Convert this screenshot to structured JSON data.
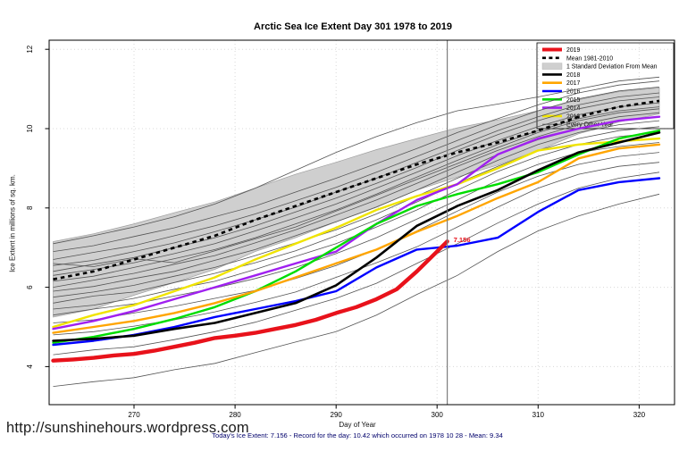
{
  "page": {
    "url_text": "http://sunshinehours.wordpress.com"
  },
  "chart_data": {
    "type": "line",
    "title": "Arctic Sea Ice Extent Day 301 1978 to 2019",
    "xlabel": "Day of Year",
    "ylabel": "Ice Extent in millions of sq. km.",
    "footnote": "Today's Ice Extent: 7.156  - Record for the day: 10.42 which occurred on 1978 10 28  - Mean: 9.34",
    "grid": true,
    "legend_position": "top-right",
    "x_ticks": [
      270,
      280,
      290,
      300,
      310,
      320
    ],
    "y_ticks": [
      4,
      6,
      8,
      10,
      12
    ],
    "xlim": [
      261.6,
      323.5
    ],
    "ylim": [
      3.04,
      12.23
    ],
    "marker_day": 301,
    "annotation": {
      "text": "7.156",
      "day": 301,
      "value": 7.156,
      "color": "#e8121b"
    },
    "days": [
      262,
      266,
      270,
      274,
      278,
      282,
      286,
      290,
      294,
      298,
      302,
      306,
      310,
      314,
      318,
      322
    ],
    "band": {
      "name": "1 Standard Deviation From Mean",
      "color": "#cfcfcf",
      "edge_color": "#9e9e9e",
      "upper": [
        7.15,
        7.35,
        7.6,
        7.88,
        8.15,
        8.5,
        8.85,
        9.15,
        9.47,
        9.75,
        10.02,
        10.22,
        10.45,
        10.73,
        10.93,
        11.03
      ],
      "lower": [
        5.25,
        5.45,
        5.8,
        6.12,
        6.45,
        6.9,
        7.25,
        7.65,
        8.03,
        8.45,
        8.78,
        9.08,
        9.45,
        9.87,
        10.17,
        10.37
      ]
    },
    "mean_series": {
      "name": "Mean 1981-2010",
      "color": "#000000",
      "dashed": true,
      "values": [
        6.2,
        6.4,
        6.7,
        7.0,
        7.3,
        7.7,
        8.05,
        8.4,
        8.75,
        9.1,
        9.4,
        9.65,
        9.95,
        10.3,
        10.55,
        10.7
      ]
    },
    "series": [
      {
        "name": "2013",
        "color": "#f0e400",
        "width": 2.4,
        "values": [
          5.0,
          5.3,
          5.55,
          5.9,
          6.25,
          6.7,
          7.1,
          7.5,
          7.95,
          8.3,
          8.6,
          9.0,
          9.45,
          9.6,
          9.68,
          9.75
        ]
      },
      {
        "name": "2014",
        "color": "#a020f0",
        "width": 2.4,
        "values": [
          4.95,
          5.15,
          5.4,
          5.7,
          6.0,
          6.3,
          6.6,
          6.9,
          7.6,
          8.2,
          8.6,
          9.35,
          9.75,
          10.0,
          10.2,
          10.3
        ]
      },
      {
        "name": "2015",
        "color": "#00dd00",
        "width": 2.4,
        "values": [
          4.6,
          4.75,
          4.95,
          5.2,
          5.5,
          5.9,
          6.4,
          7.0,
          7.6,
          8.05,
          8.35,
          8.6,
          8.9,
          9.35,
          9.75,
          9.95
        ]
      },
      {
        "name": "2016",
        "color": "#0000ff",
        "width": 2.4,
        "values": [
          4.55,
          4.65,
          4.8,
          5.0,
          5.25,
          5.45,
          5.65,
          5.9,
          6.5,
          6.95,
          7.05,
          7.25,
          7.9,
          8.45,
          8.65,
          8.75
        ]
      },
      {
        "name": "2017",
        "color": "#ffa500",
        "width": 2.4,
        "values": [
          4.85,
          5.0,
          5.15,
          5.35,
          5.6,
          5.9,
          6.25,
          6.6,
          6.95,
          7.4,
          7.8,
          8.25,
          8.65,
          9.25,
          9.5,
          9.6
        ]
      },
      {
        "name": "2018",
        "color": "#000000",
        "width": 2.6,
        "values": [
          4.65,
          4.7,
          4.78,
          4.95,
          5.1,
          5.35,
          5.6,
          6.05,
          6.75,
          7.55,
          8.05,
          8.45,
          8.95,
          9.4,
          9.65,
          9.9
        ]
      }
    ],
    "current_year_series": {
      "name": "2019",
      "color": "#e8121b",
      "width": 4.4,
      "x": [
        262,
        264,
        266,
        268,
        270,
        272,
        274,
        276,
        278,
        280,
        282,
        284,
        286,
        288,
        290,
        292,
        294,
        296,
        298,
        300,
        301
      ],
      "values": [
        4.15,
        4.18,
        4.22,
        4.28,
        4.32,
        4.4,
        4.5,
        4.6,
        4.72,
        4.78,
        4.85,
        4.95,
        5.05,
        5.18,
        5.35,
        5.5,
        5.7,
        5.95,
        6.4,
        6.9,
        7.156
      ]
    },
    "other_years_label": "Every Other Year",
    "other_years_color": "#545454",
    "other_years": [
      [
        3.5,
        3.62,
        3.72,
        3.92,
        4.08,
        4.35,
        4.62,
        4.88,
        5.3,
        5.82,
        6.3,
        6.9,
        7.42,
        7.8,
        8.1,
        8.35
      ],
      [
        4.3,
        4.42,
        4.5,
        4.68,
        4.88,
        5.12,
        5.42,
        5.72,
        6.1,
        6.6,
        7.1,
        7.62,
        8.1,
        8.5,
        8.75,
        8.9
      ],
      [
        4.8,
        4.88,
        5.02,
        5.18,
        5.38,
        5.62,
        5.88,
        6.25,
        6.62,
        7.02,
        7.52,
        8.02,
        8.5,
        8.85,
        9.05,
        9.15
      ],
      [
        5.1,
        5.18,
        5.35,
        5.52,
        5.72,
        5.92,
        6.22,
        6.55,
        6.95,
        7.42,
        7.92,
        8.4,
        8.8,
        9.1,
        9.3,
        9.4
      ],
      [
        5.3,
        5.45,
        5.58,
        5.78,
        5.98,
        6.22,
        6.5,
        6.85,
        7.25,
        7.72,
        8.2,
        8.7,
        9.1,
        9.4,
        9.55,
        9.65
      ],
      [
        5.45,
        5.55,
        5.72,
        5.95,
        6.15,
        6.45,
        6.78,
        7.1,
        7.52,
        7.95,
        8.45,
        8.92,
        9.3,
        9.6,
        9.8,
        9.9
      ],
      [
        5.6,
        5.78,
        5.88,
        6.12,
        6.35,
        6.62,
        6.92,
        7.3,
        7.7,
        8.15,
        8.62,
        9.05,
        9.45,
        9.75,
        9.95,
        10.05
      ],
      [
        5.75,
        5.88,
        6.05,
        6.28,
        6.5,
        6.8,
        7.12,
        7.45,
        7.85,
        8.3,
        8.75,
        9.2,
        9.6,
        9.9,
        10.1,
        10.2
      ],
      [
        5.9,
        6.02,
        6.22,
        6.4,
        6.68,
        6.95,
        7.3,
        7.65,
        8.02,
        8.45,
        8.9,
        9.35,
        9.72,
        10.0,
        10.2,
        10.3
      ],
      [
        6.0,
        6.18,
        6.35,
        6.58,
        6.8,
        7.12,
        7.45,
        7.82,
        8.2,
        8.62,
        9.05,
        9.45,
        9.8,
        10.1,
        10.3,
        10.4
      ],
      [
        6.15,
        6.28,
        6.5,
        6.72,
        6.95,
        7.25,
        7.6,
        7.95,
        8.35,
        8.78,
        9.2,
        9.6,
        9.95,
        10.25,
        10.45,
        10.55
      ],
      [
        6.3,
        6.45,
        6.62,
        6.85,
        7.1,
        7.42,
        7.75,
        8.1,
        8.5,
        8.9,
        9.32,
        9.7,
        10.05,
        10.35,
        10.55,
        10.65
      ],
      [
        6.4,
        6.58,
        6.75,
        7.0,
        7.25,
        7.55,
        7.9,
        8.25,
        8.62,
        9.02,
        9.45,
        9.85,
        10.2,
        10.5,
        10.7,
        10.8
      ],
      [
        6.55,
        6.68,
        6.9,
        7.12,
        7.4,
        7.7,
        8.02,
        8.4,
        8.75,
        9.15,
        9.55,
        9.95,
        10.3,
        10.6,
        10.8,
        10.9
      ],
      [
        6.7,
        6.88,
        7.05,
        7.3,
        7.55,
        7.85,
        8.18,
        8.52,
        8.9,
        9.3,
        9.7,
        10.1,
        10.45,
        10.75,
        10.95,
        11.05
      ],
      [
        6.9,
        7.05,
        7.28,
        7.5,
        7.78,
        8.05,
        8.4,
        8.75,
        9.12,
        9.5,
        9.9,
        10.25,
        10.6,
        10.9,
        11.1,
        11.2
      ],
      [
        7.1,
        7.3,
        7.52,
        7.78,
        8.1,
        8.5,
        8.95,
        9.4,
        9.8,
        10.15,
        10.45,
        10.62,
        10.8,
        11.0,
        11.2,
        11.3
      ],
      [
        6.6,
        6.52,
        6.72,
        6.62,
        6.92,
        7.22,
        7.52,
        7.92,
        8.32,
        8.72,
        9.12,
        9.52,
        9.9,
        10.2,
        10.4,
        10.5
      ]
    ],
    "legend": [
      {
        "label": "2019",
        "swatch": "line",
        "color": "#e8121b",
        "width": 4
      },
      {
        "label": "Mean 1981-2010",
        "swatch": "dashed-line",
        "color": "#000000",
        "width": 2.6
      },
      {
        "label": "1 Standard Deviation From Mean",
        "swatch": "band",
        "color": "#cfcfcf"
      },
      {
        "label": "2018",
        "swatch": "line",
        "color": "#000000",
        "width": 2.6
      },
      {
        "label": "2017",
        "swatch": "line",
        "color": "#ffa500",
        "width": 2.6
      },
      {
        "label": "2016",
        "swatch": "line",
        "color": "#0000ff",
        "width": 2.6
      },
      {
        "label": "2015",
        "swatch": "line",
        "color": "#00dd00",
        "width": 2.6
      },
      {
        "label": "2014",
        "swatch": "line",
        "color": "#a020f0",
        "width": 2.6
      },
      {
        "label": "2013",
        "swatch": "line",
        "color": "#f0e400",
        "width": 2.6
      },
      {
        "label": "Every Other Year",
        "swatch": "thin-line",
        "color": "#545454",
        "width": 0.9
      }
    ]
  }
}
